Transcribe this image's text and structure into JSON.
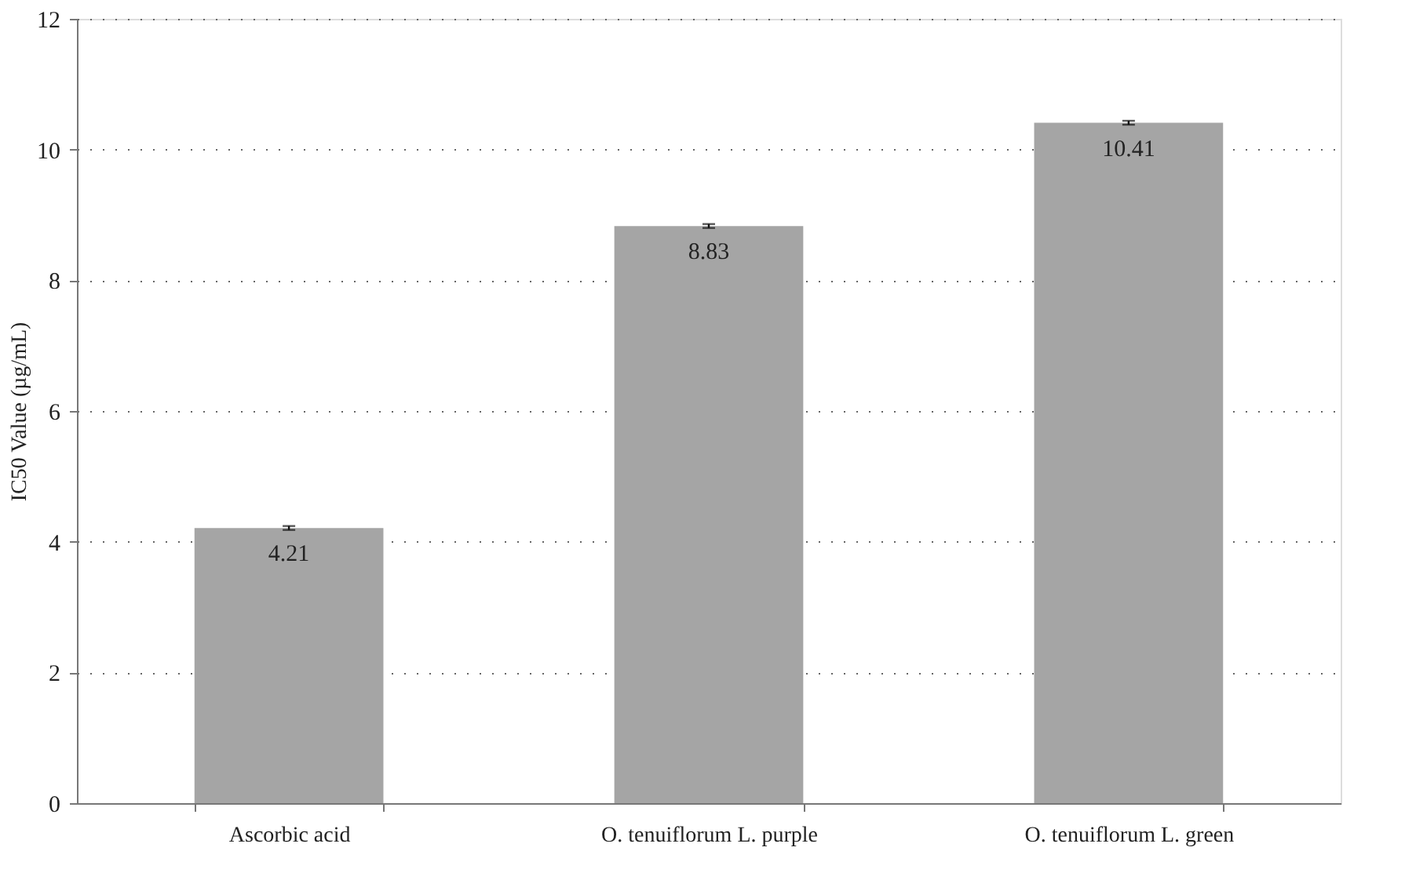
{
  "chart_data": {
    "type": "bar",
    "ylabel": "IC50 Value (µg/mL)",
    "categories": [
      "Ascorbic acid",
      "O. tenuiflorum L. purple",
      "O. tenuiflorum L. green"
    ],
    "values": [
      4.21,
      8.83,
      10.41
    ],
    "errors": [
      0.03,
      0.03,
      0.03
    ],
    "color": "#a5a5a5",
    "ylim": [
      0,
      12
    ],
    "yticks": [
      0,
      2,
      4,
      6,
      8,
      10,
      12
    ],
    "grid": "y",
    "data_labels": true
  }
}
